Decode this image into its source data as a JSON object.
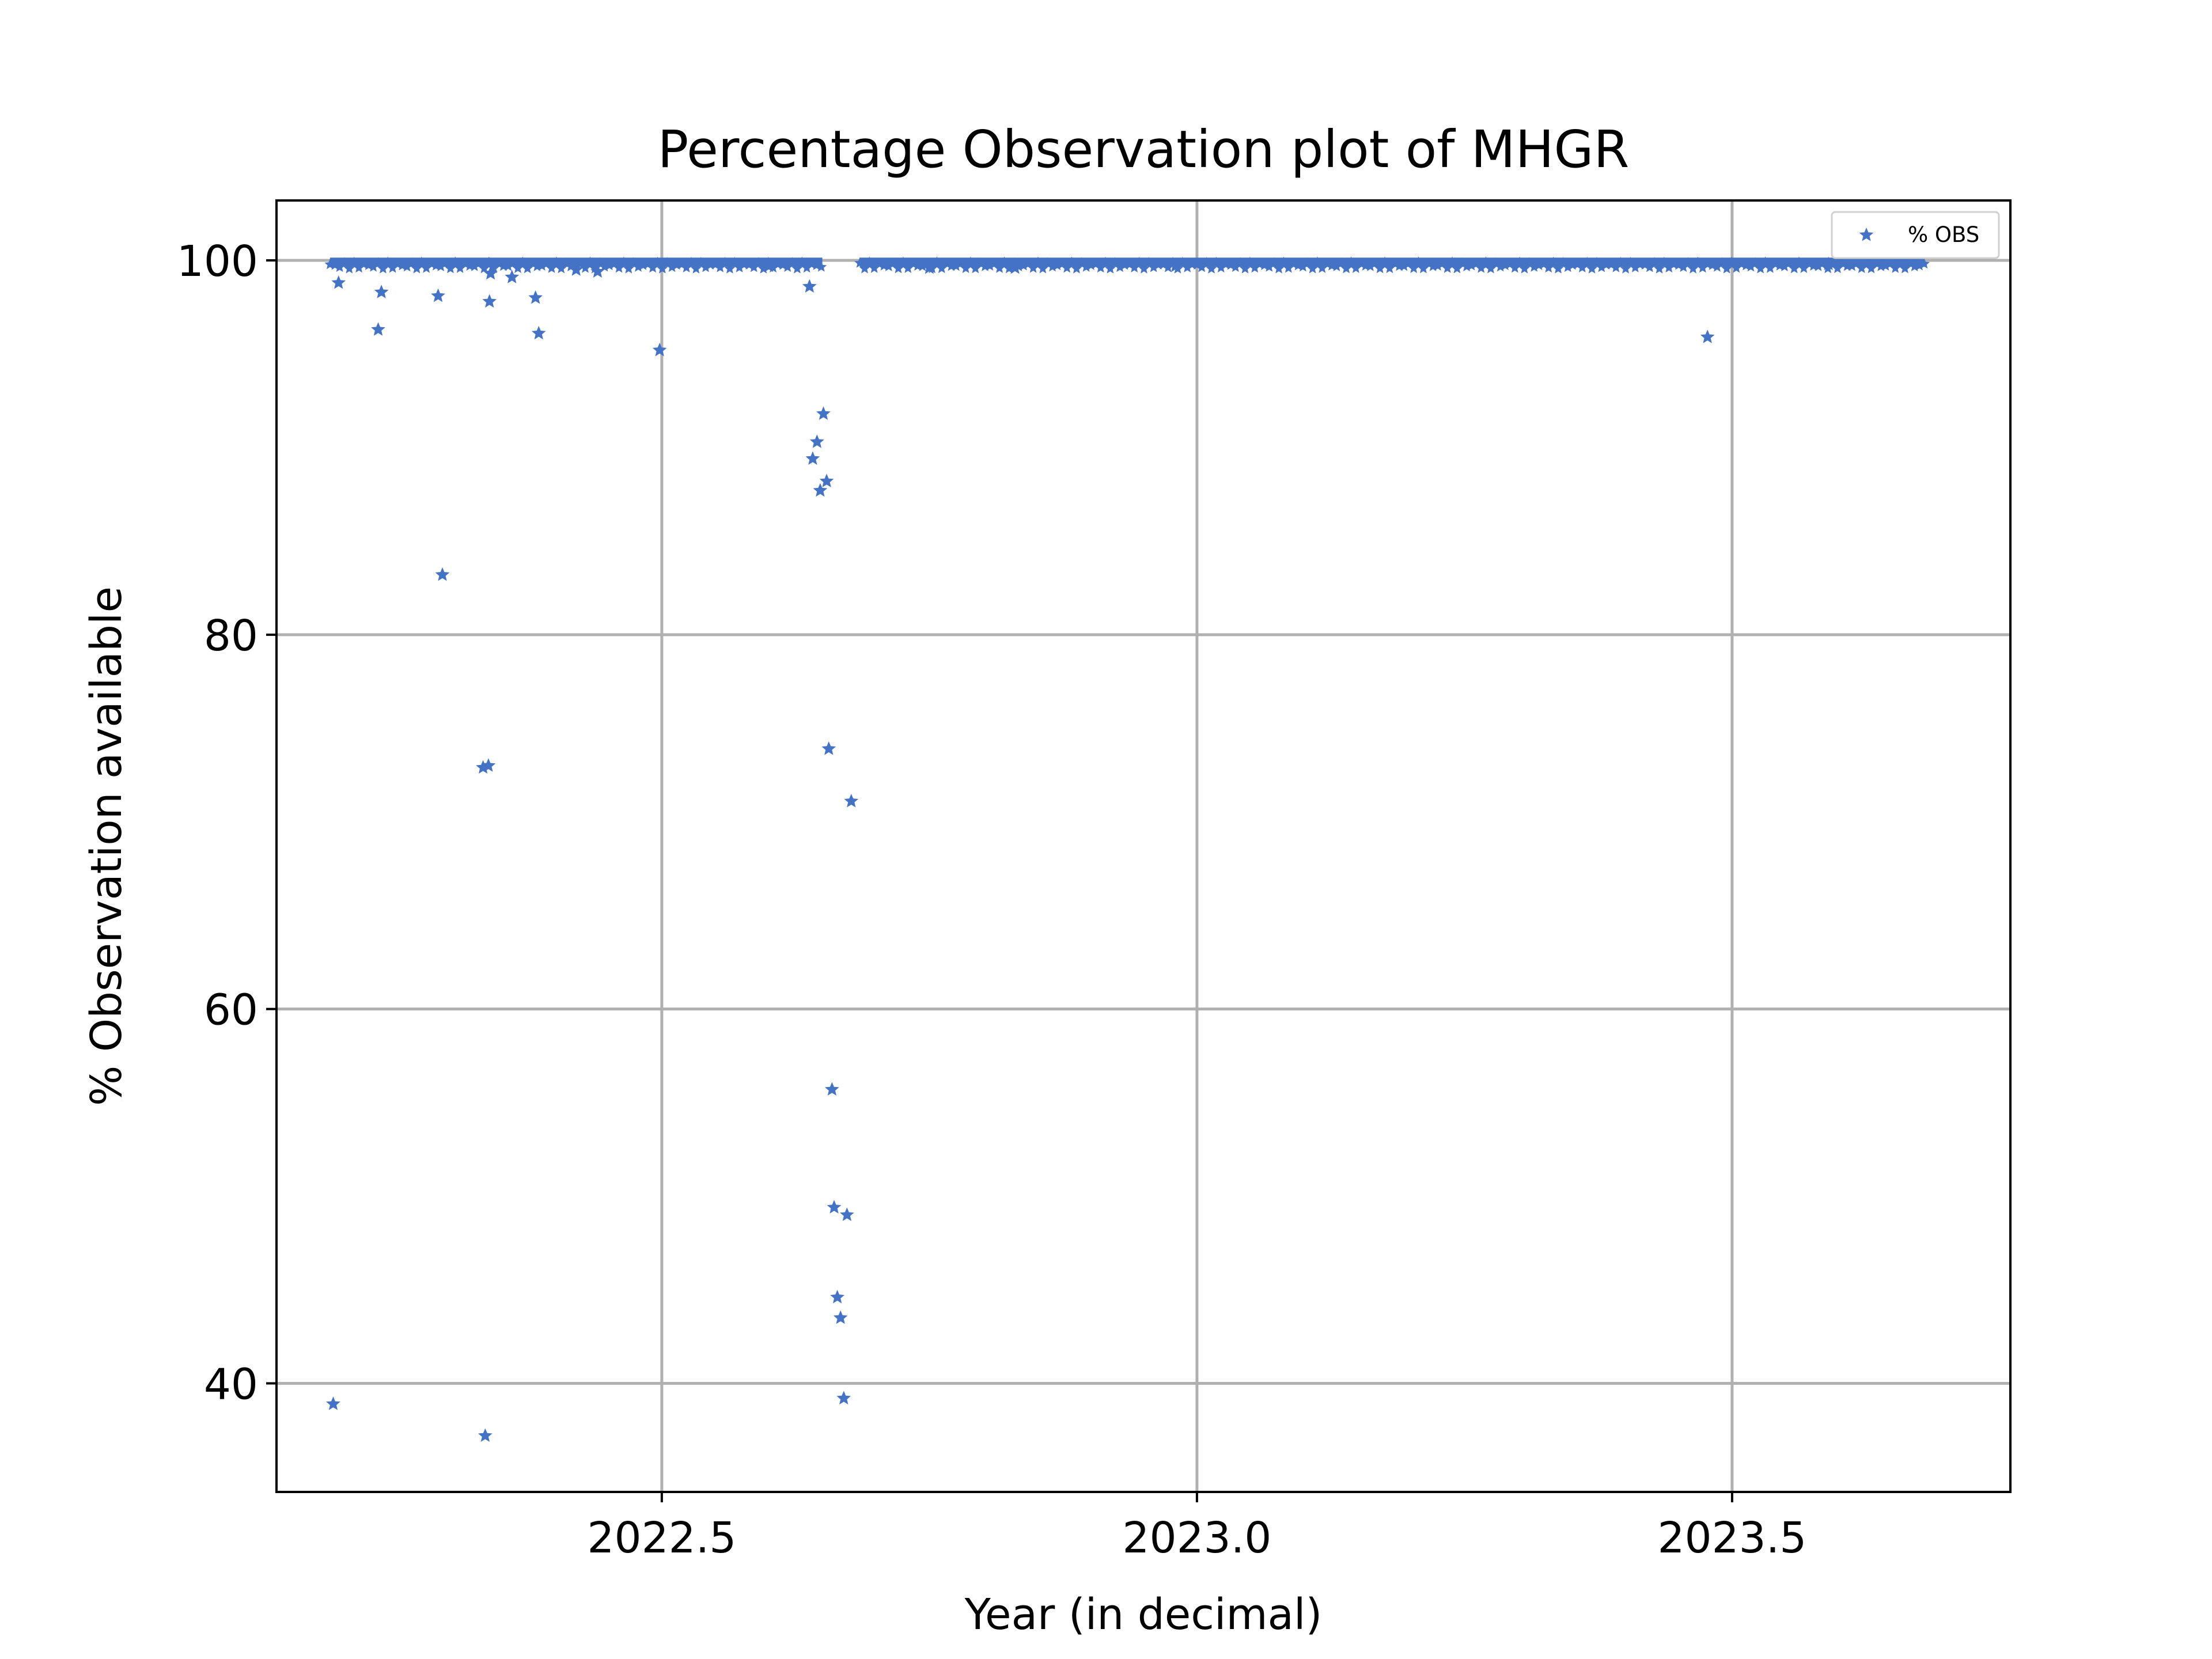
{
  "chart_data": {
    "type": "scatter",
    "title": "Percentage Observation plot of MHGR",
    "xlabel": "Year (in decimal)",
    "ylabel": "% Observation available",
    "xlim": [
      2022.14,
      2023.76
    ],
    "ylim": [
      34.2,
      103.2
    ],
    "xticks": [
      2022.5,
      2023.0,
      2023.5
    ],
    "xtick_labels": [
      "2022.5",
      "2023.0",
      "2023.5"
    ],
    "yticks": [
      40,
      60,
      80,
      100
    ],
    "ytick_labels": [
      "40",
      "60",
      "80",
      "100"
    ],
    "grid": true,
    "legend": {
      "position": "top-right",
      "entries": [
        "% OBS"
      ]
    },
    "series": [
      {
        "name": "% OBS",
        "color": "#4472c4",
        "marker": "star",
        "baseline": {
          "value": 99.9,
          "x_ranges": [
            [
              2022.19,
              2022.65
            ],
            [
              2022.685,
              2023.68
            ]
          ]
        },
        "points": [
          {
            "x": 2022.193,
            "y": 38.9
          },
          {
            "x": 2022.198,
            "y": 98.8
          },
          {
            "x": 2022.235,
            "y": 96.3
          },
          {
            "x": 2022.238,
            "y": 98.3
          },
          {
            "x": 2022.291,
            "y": 98.1
          },
          {
            "x": 2022.295,
            "y": 83.2
          },
          {
            "x": 2022.333,
            "y": 72.9
          },
          {
            "x": 2022.338,
            "y": 73.0
          },
          {
            "x": 2022.335,
            "y": 37.2
          },
          {
            "x": 2022.339,
            "y": 97.8
          },
          {
            "x": 2022.382,
            "y": 98.0
          },
          {
            "x": 2022.385,
            "y": 96.1
          },
          {
            "x": 2022.498,
            "y": 95.2
          },
          {
            "x": 2022.638,
            "y": 98.6
          },
          {
            "x": 2022.641,
            "y": 89.4
          },
          {
            "x": 2022.645,
            "y": 90.3
          },
          {
            "x": 2022.648,
            "y": 87.7
          },
          {
            "x": 2022.651,
            "y": 91.8
          },
          {
            "x": 2022.654,
            "y": 88.2
          },
          {
            "x": 2022.656,
            "y": 73.9
          },
          {
            "x": 2022.659,
            "y": 55.7
          },
          {
            "x": 2022.661,
            "y": 49.4
          },
          {
            "x": 2022.664,
            "y": 44.6
          },
          {
            "x": 2022.667,
            "y": 43.5
          },
          {
            "x": 2022.67,
            "y": 39.2
          },
          {
            "x": 2022.673,
            "y": 49.0
          },
          {
            "x": 2022.677,
            "y": 71.1
          },
          {
            "x": 2023.477,
            "y": 95.9
          },
          {
            "x": 2022.34,
            "y": 99.3
          },
          {
            "x": 2022.36,
            "y": 99.1
          },
          {
            "x": 2022.42,
            "y": 99.5
          },
          {
            "x": 2022.44,
            "y": 99.4
          },
          {
            "x": 2022.6,
            "y": 99.7
          },
          {
            "x": 2022.75,
            "y": 99.6
          },
          {
            "x": 2022.83,
            "y": 99.6
          },
          {
            "x": 2022.98,
            "y": 99.7
          },
          {
            "x": 2023.27,
            "y": 99.8
          },
          {
            "x": 2023.59,
            "y": 99.8
          }
        ]
      }
    ]
  }
}
